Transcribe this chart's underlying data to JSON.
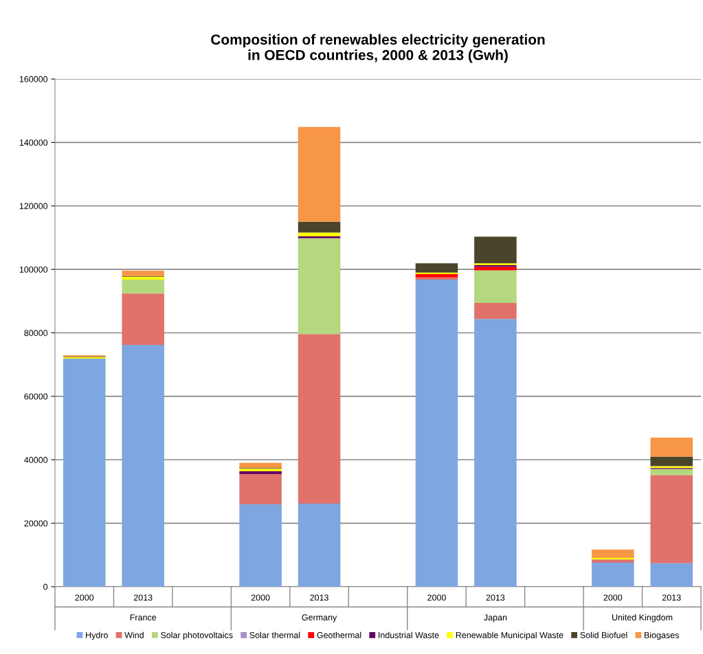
{
  "chart_data": {
    "type": "bar",
    "stacked": true,
    "title": "Composition of renewables electricity generation\nin OECD countries, 2000 & 2013 (Gwh)",
    "categories": [
      "2000",
      "2013",
      null,
      "2000",
      "2013",
      null,
      "2000",
      "2013",
      null,
      "2000",
      "2013"
    ],
    "annotations": [
      "France",
      "Germany",
      "Japan",
      "United Kingdom"
    ],
    "series": [
      {
        "name": "Hydro",
        "color": "#7ea6e0",
        "values": [
          71900,
          76200,
          null,
          26000,
          26200,
          null,
          96800,
          84400,
          null,
          7600,
          7400
        ]
      },
      {
        "name": "Wind",
        "color": "#e0716b",
        "values": [
          0,
          16200,
          null,
          9500,
          53400,
          null,
          700,
          5000,
          null,
          1000,
          27800
        ]
      },
      {
        "name": "Solar photovoltaics",
        "color": "#b5d77e",
        "values": [
          0,
          4400,
          null,
          0,
          30200,
          null,
          0,
          10300,
          null,
          0,
          1900
        ]
      },
      {
        "name": "Solar thermal",
        "color": "#a48fc9",
        "values": [
          0,
          0,
          null,
          0,
          0,
          null,
          0,
          0,
          null,
          0,
          0
        ]
      },
      {
        "name": "Geothermal",
        "color": "#ff0000",
        "values": [
          0,
          0,
          null,
          0,
          0,
          null,
          1000,
          1100,
          null,
          0,
          0
        ]
      },
      {
        "name": "Industrial Waste",
        "color": "#660066",
        "values": [
          0,
          0,
          null,
          900,
          600,
          null,
          0,
          500,
          null,
          0,
          300
        ]
      },
      {
        "name": "Renewable Municipal Waste",
        "color": "#ffff00",
        "values": [
          400,
          900,
          null,
          800,
          1200,
          null,
          500,
          600,
          null,
          500,
          600
        ]
      },
      {
        "name": "Solid Biofuel",
        "color": "#4a442a",
        "values": [
          200,
          200,
          null,
          200,
          3400,
          null,
          2900,
          8400,
          null,
          0,
          3000
        ]
      },
      {
        "name": "Biogases",
        "color": "#f79646",
        "values": [
          400,
          1700,
          null,
          1600,
          29900,
          null,
          0,
          0,
          null,
          2600,
          6000
        ]
      }
    ],
    "ylim": [
      0,
      160000
    ],
    "yticks": [
      0,
      20000,
      40000,
      60000,
      80000,
      100000,
      120000,
      140000,
      160000
    ],
    "grid": "y",
    "legend": "bottom"
  }
}
